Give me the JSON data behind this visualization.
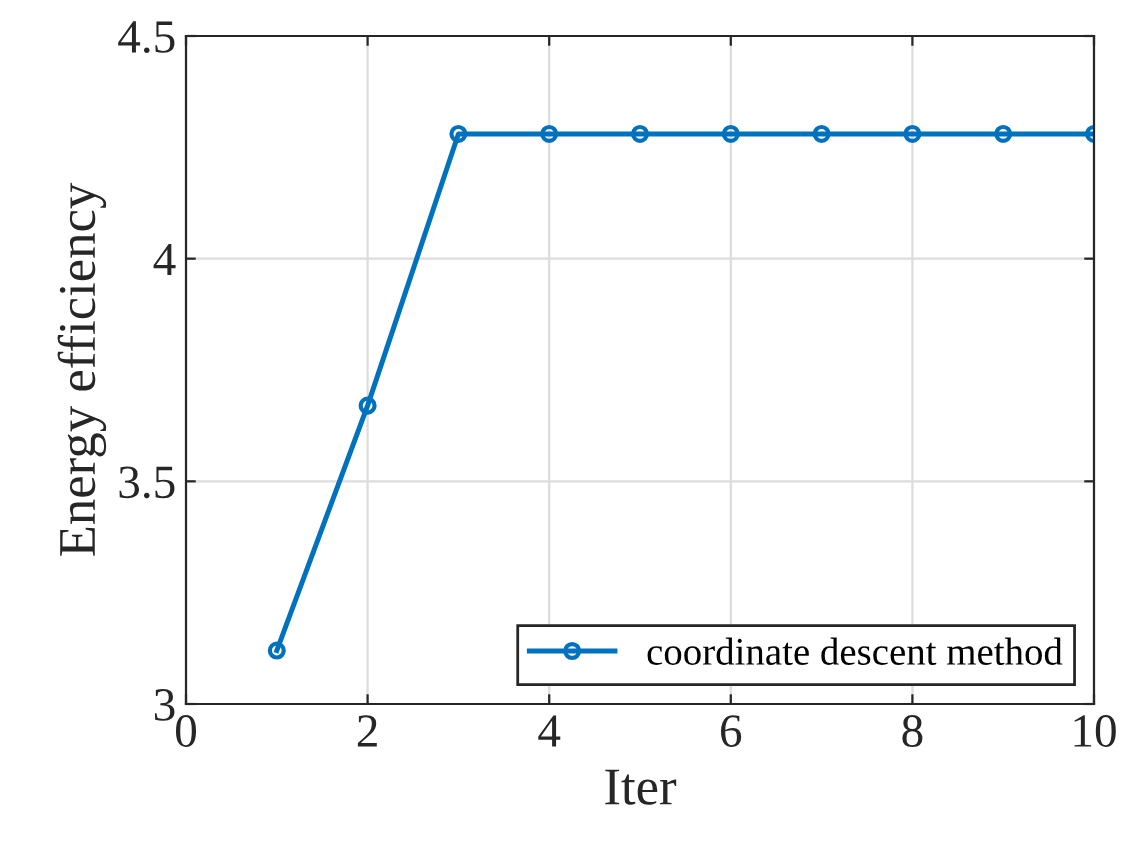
{
  "chart_data": {
    "type": "line",
    "xlabel": "Iter",
    "ylabel": "Energy efficiency",
    "x": [
      1,
      2,
      3,
      4,
      5,
      6,
      7,
      8,
      9,
      10
    ],
    "series": [
      {
        "name": "coordinate descent method",
        "color": "#0072bd",
        "values": [
          3.12,
          3.67,
          4.28,
          4.28,
          4.28,
          4.28,
          4.28,
          4.28,
          4.28,
          4.28
        ]
      }
    ],
    "xlim": [
      0,
      10
    ],
    "xticks": [
      0,
      2,
      4,
      6,
      8,
      10
    ],
    "ylim": [
      3,
      4.5
    ],
    "yticks": [
      3,
      3.5,
      4,
      4.5
    ],
    "grid": true,
    "legend": "bottom right",
    "marker": "circle",
    "line_style": "solid"
  }
}
